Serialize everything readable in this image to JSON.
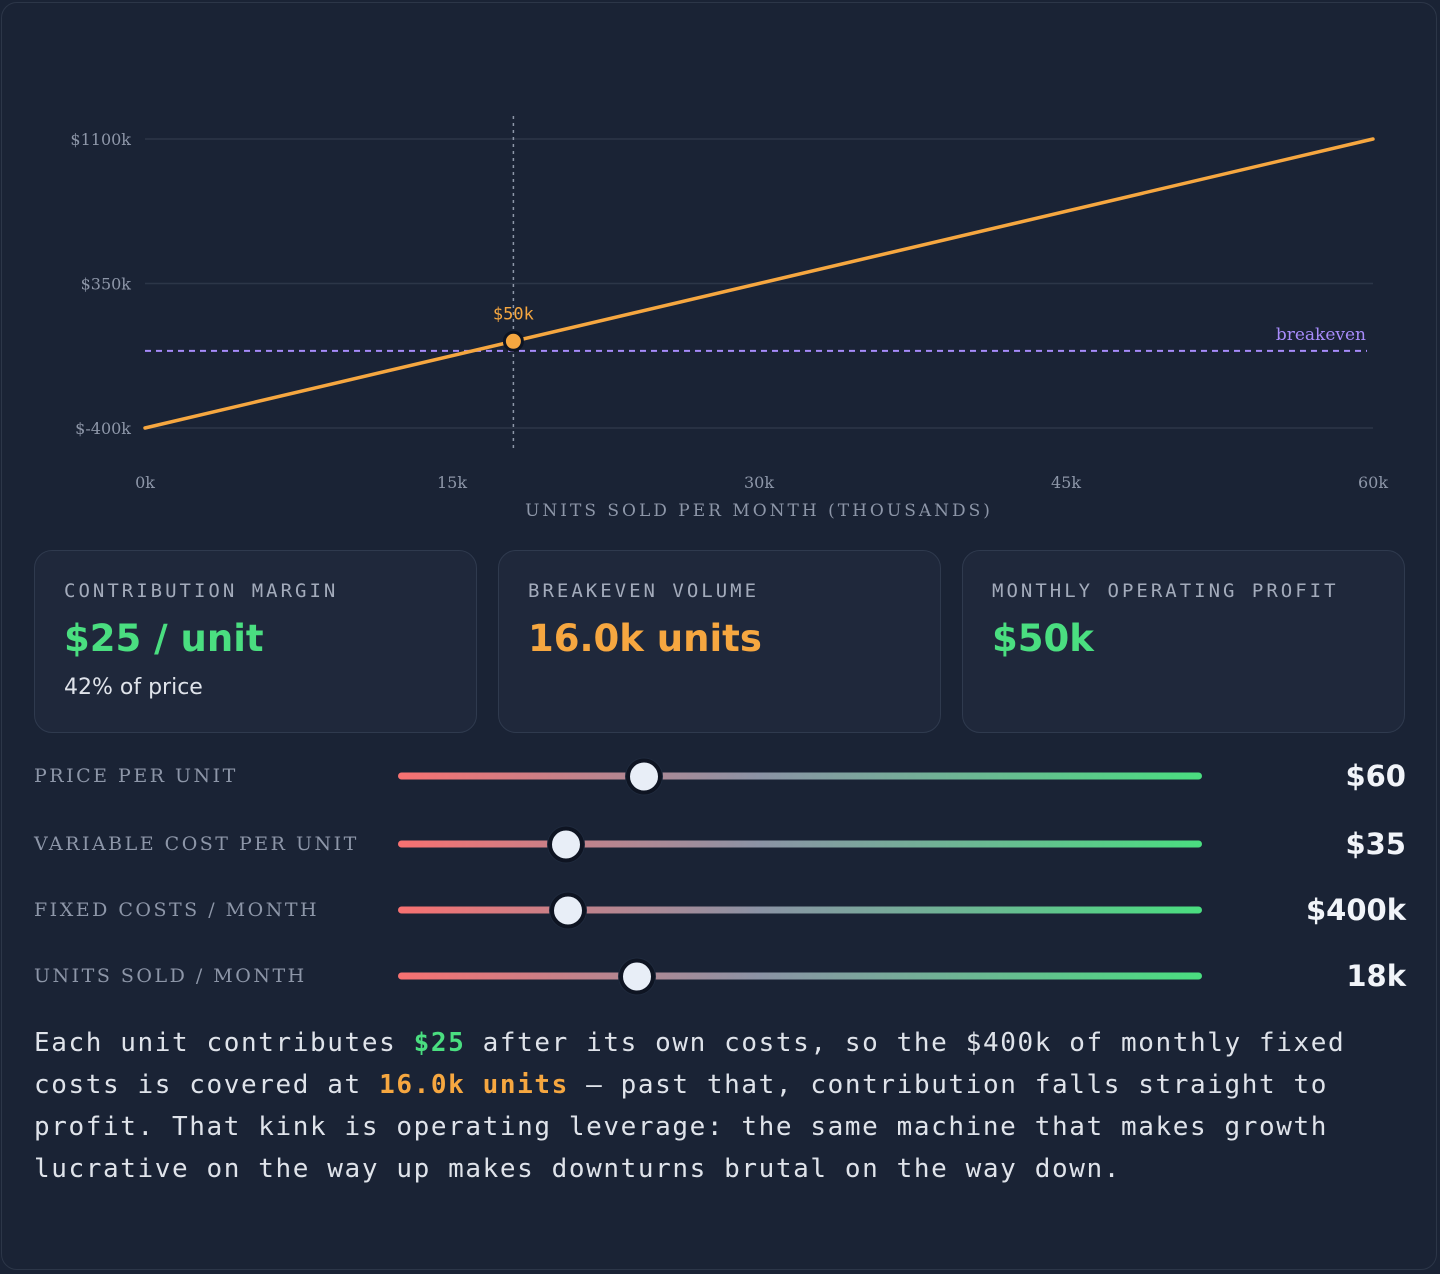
{
  "chart_data": {
    "type": "line",
    "xlabel": "UNITS SOLD PER MONTH (THOUSANDS)",
    "x_ticks": [
      "0k",
      "15k",
      "30k",
      "45k",
      "60k"
    ],
    "y_ticks": [
      "$-400k",
      "$350k",
      "$1100k"
    ],
    "xlim": [
      0,
      60
    ],
    "ylim": [
      -400,
      1100
    ],
    "series": [
      {
        "x": [
          0,
          60
        ],
        "y": [
          -400,
          1100
        ],
        "color": "#f6a740"
      }
    ],
    "breakeven": {
      "y": 0,
      "label": "breakeven",
      "color": "#a78bfa"
    },
    "marker": {
      "x": 18,
      "y": 50,
      "label": "$50k"
    },
    "grid": "horizontal"
  },
  "cards": [
    {
      "label": "CONTRIBUTION MARGIN",
      "value": "$25 / unit",
      "sub": "42% of price"
    },
    {
      "label": "BREAKEVEN VOLUME",
      "value": "16.0k units"
    },
    {
      "label": "MONTHLY OPERATING PROFIT",
      "value": "$50k"
    }
  ],
  "sliders": [
    {
      "label": "PRICE PER UNIT",
      "value": "$60",
      "fraction": 0.306
    },
    {
      "label": "VARIABLE COST PER UNIT",
      "value": "$35",
      "fraction": 0.209
    },
    {
      "label": "FIXED COSTS / MONTH",
      "value": "$400k",
      "fraction": 0.211
    },
    {
      "label": "UNITS SOLD / MONTH",
      "value": "18k",
      "fraction": 0.297
    }
  ],
  "explanation": {
    "p1": "Each unit contributes ",
    "margin": "$25",
    "p2": " after its own costs, so the $400k of monthly fixed costs is covered at ",
    "breakeven": "16.0k units",
    "p3": " — past that, contribution falls straight to profit. That kink is operating leverage: the same machine that makes growth lucrative on the way up makes downturns brutal on the way down."
  },
  "colors": {
    "background": "#1a2335",
    "line": "#f6a740",
    "breakeven": "#a78bfa",
    "positive": "#4ade80",
    "negative": "#f87171"
  }
}
